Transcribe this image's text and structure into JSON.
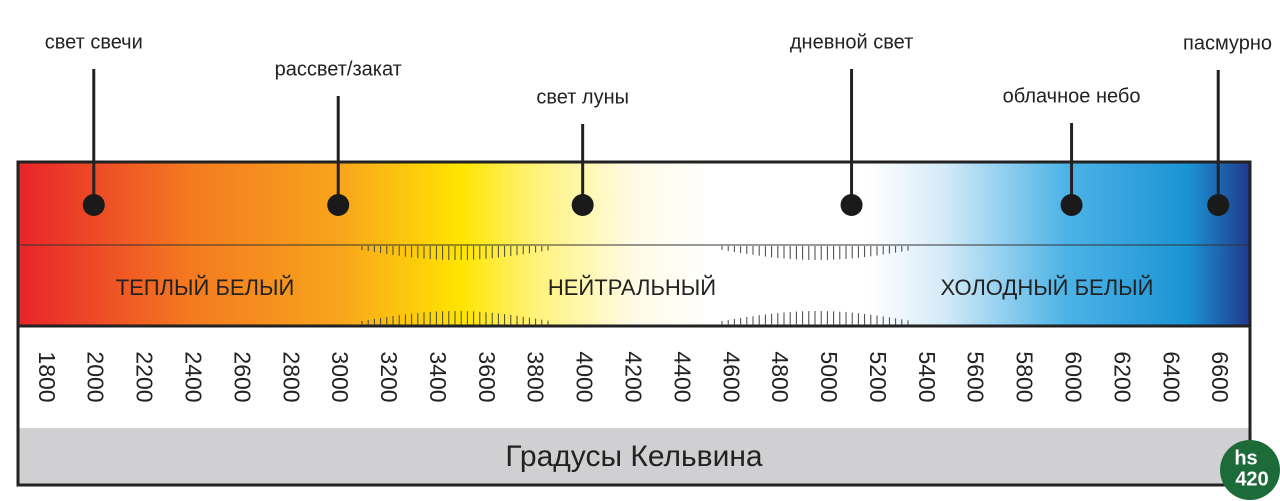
{
  "scale": {
    "xlim": [
      1690,
      6730
    ],
    "xticks": [
      1800,
      2000,
      2200,
      2400,
      2600,
      2800,
      3000,
      3200,
      3400,
      3600,
      3800,
      4000,
      4200,
      4400,
      4600,
      4800,
      5000,
      5200,
      5400,
      5600,
      5800,
      6000,
      6200,
      6400,
      6600
    ],
    "annotations": [
      {
        "label": "свет свечи",
        "value": 2000
      },
      {
        "label": "рассвет/закат",
        "value": 3000
      },
      {
        "label": "свет луны",
        "value": 4000
      },
      {
        "label": "дневной свет",
        "value": 5100
      },
      {
        "label": "облачное небо",
        "value": 6000
      },
      {
        "label": "пасмурно",
        "value": 6600
      }
    ],
    "zones": [
      "ТЕПЛЫЙ БЕЛЫЙ",
      "НЕЙТРАЛЬНЫЙ",
      "ХОЛОДНЫЙ БЕЛЫЙ"
    ],
    "axis_title": "Градусы Кельвина"
  },
  "logo": {
    "top": "hs",
    "bottom": "420"
  }
}
